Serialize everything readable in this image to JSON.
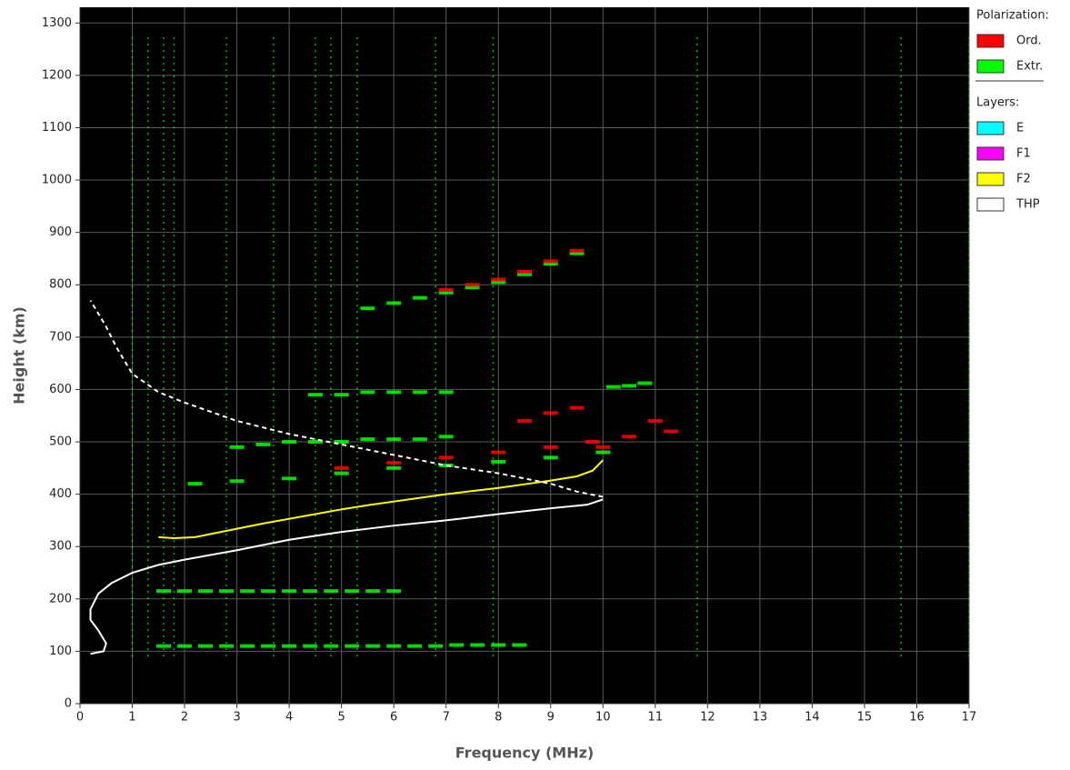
{
  "chart_data": {
    "type": "ionogram",
    "xlabel": "Frequency (MHz)",
    "ylabel": "Height (km)",
    "xlim": [
      0,
      17
    ],
    "ylim": [
      0,
      1330
    ],
    "xticks": [
      0,
      1,
      2,
      3,
      4,
      5,
      6,
      7,
      8,
      9,
      10,
      11,
      12,
      13,
      14,
      15,
      16,
      17
    ],
    "yticks": [
      0,
      100,
      200,
      300,
      400,
      500,
      600,
      700,
      800,
      900,
      1000,
      1100,
      1200,
      1300
    ],
    "grid": true,
    "legend_groups": [
      {
        "title": "Polarization:",
        "items": [
          {
            "name": "Ord.",
            "color": "#ff0000"
          },
          {
            "name": "Extr.",
            "color": "#00ff00"
          }
        ]
      },
      {
        "title": "Layers:",
        "items": [
          {
            "name": "E",
            "color": "#00ffff"
          },
          {
            "name": "F1",
            "color": "#ff00ff"
          },
          {
            "name": "F2",
            "color": "#ffff00"
          },
          {
            "name": "THP",
            "color": "#ffffff"
          }
        ]
      }
    ],
    "interference": {
      "color": "#00ff00",
      "x": [
        1.0,
        1.3,
        1.6,
        1.8,
        2.8,
        3.7,
        4.5,
        4.8,
        5.3,
        6.8,
        7.9,
        11.8,
        15.7,
        17.0
      ],
      "ylim": [
        90,
        1280
      ]
    },
    "echoes": [
      {
        "color": "#00ff00",
        "x": [
          1.6,
          2.0,
          2.4,
          2.8,
          3.2,
          3.6,
          4.0,
          4.4,
          4.8,
          5.2,
          5.6,
          6.0,
          6.4,
          6.8,
          7.2,
          7.6,
          8.0,
          8.4
        ],
        "y": [
          110,
          110,
          110,
          110,
          110,
          110,
          110,
          110,
          110,
          110,
          110,
          110,
          110,
          110,
          112,
          112,
          112,
          112
        ]
      },
      {
        "color": "#00ff00",
        "x": [
          1.6,
          2.0,
          2.4,
          2.8,
          3.2,
          3.6,
          4.0,
          4.4,
          4.8,
          5.2,
          5.6,
          6.0
        ],
        "y": [
          215,
          215,
          215,
          215,
          215,
          215,
          215,
          215,
          215,
          215,
          215,
          215
        ]
      },
      {
        "color": "#00ff00",
        "x": [
          2.2,
          3.0,
          4.0,
          5.0,
          6.0,
          7.0,
          8.0,
          9.0,
          10.0
        ],
        "y": [
          420,
          425,
          430,
          440,
          450,
          455,
          462,
          470,
          480
        ]
      },
      {
        "color": "#00ff00",
        "x": [
          3.0,
          3.5,
          4.0,
          4.5,
          5.0,
          5.5,
          6.0,
          6.5,
          7.0
        ],
        "y": [
          490,
          495,
          500,
          500,
          500,
          505,
          505,
          505,
          510
        ]
      },
      {
        "color": "#00ff00",
        "x": [
          4.5,
          5.0,
          5.5,
          6.0,
          6.5,
          7.0
        ],
        "y": [
          590,
          590,
          595,
          595,
          595,
          595
        ]
      },
      {
        "color": "#00ff00",
        "x": [
          5.5,
          6.0,
          6.5,
          7.0,
          7.5,
          8.0,
          8.5,
          9.0,
          9.5
        ],
        "y": [
          755,
          765,
          775,
          785,
          795,
          805,
          820,
          840,
          860
        ]
      },
      {
        "color": "#00ff00",
        "x": [
          10.2,
          10.5,
          10.8
        ],
        "y": [
          605,
          607,
          612
        ]
      },
      {
        "color": "#ff0000",
        "x": [
          7.0,
          7.5,
          8.0,
          8.5,
          9.0,
          9.5
        ],
        "y": [
          790,
          800,
          810,
          825,
          845,
          865
        ]
      },
      {
        "color": "#ff0000",
        "x": [
          8.5,
          9.0,
          9.5,
          10.0,
          10.5,
          11.0,
          11.3
        ],
        "y": [
          540,
          555,
          565,
          490,
          510,
          540,
          520
        ]
      },
      {
        "color": "#ff0000",
        "x": [
          5.0,
          6.0,
          7.0,
          8.0,
          9.0,
          9.8
        ],
        "y": [
          450,
          460,
          470,
          480,
          490,
          500
        ]
      }
    ],
    "series": [
      {
        "color": "#ffff00",
        "x": [
          1.5,
          1.8,
          2.2,
          2.6,
          3.0,
          3.5,
          4.0,
          4.5,
          5.0,
          5.5,
          6.0,
          6.5,
          7.0,
          7.5,
          8.0,
          8.5,
          9.0,
          9.5,
          9.8,
          10.0
        ],
        "values": [
          318,
          316,
          318,
          326,
          334,
          344,
          353,
          362,
          371,
          379,
          386,
          393,
          400,
          406,
          412,
          419,
          426,
          434,
          445,
          465
        ]
      },
      {
        "color": "#ffffff",
        "x": [
          0.2,
          0.45,
          0.5,
          0.35,
          0.2,
          0.2,
          0.35,
          0.6,
          1.0,
          1.5,
          2.0,
          3.0,
          4.0,
          5.0,
          6.0,
          7.0,
          8.0,
          9.0,
          9.7,
          10.0
        ],
        "values": [
          95,
          100,
          115,
          140,
          160,
          180,
          210,
          230,
          250,
          265,
          275,
          293,
          313,
          328,
          340,
          350,
          362,
          373,
          380,
          390
        ]
      },
      {
        "color": "#ffffff",
        "dashed": true,
        "x": [
          10.0,
          9.5,
          9.0,
          8.0,
          7.0,
          6.0,
          5.0,
          4.0,
          3.0,
          2.0,
          1.5,
          1.0,
          0.7,
          0.5,
          0.2
        ],
        "values": [
          395,
          405,
          420,
          440,
          455,
          475,
          495,
          515,
          540,
          575,
          595,
          630,
          680,
          720,
          770
        ]
      }
    ]
  }
}
